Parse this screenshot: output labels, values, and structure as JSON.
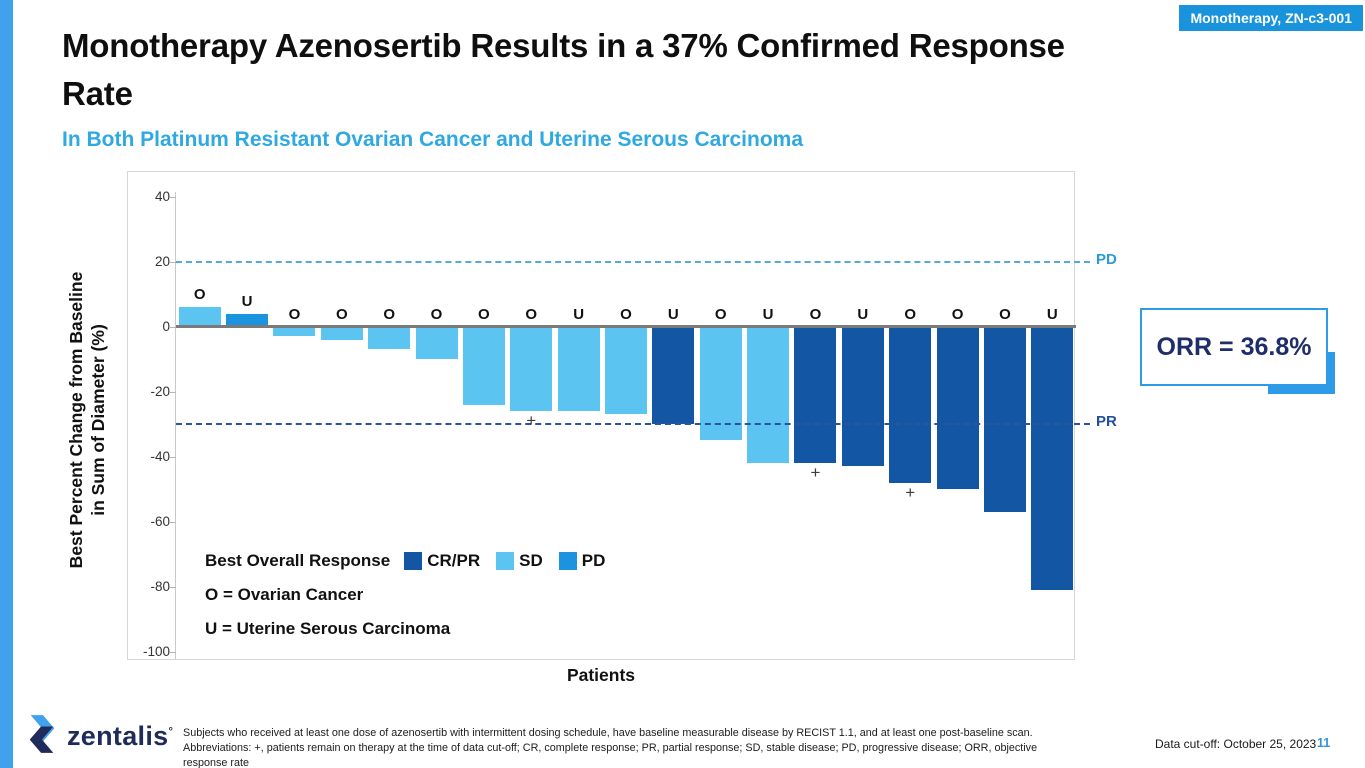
{
  "badge": {
    "label": "Monotherapy, ZN-c3-001"
  },
  "title": "Monotherapy Azenosertib Results in a 37% Confirmed Response Rate",
  "subtitle": "In Both Platinum Resistant Ovarian Cancer and Uterine Serous Carcinoma",
  "orr_box": {
    "text": "ORR = 36.8%"
  },
  "chart_data": {
    "type": "bar",
    "xlabel": "Patients",
    "ylabel": "Best Percent Change from Baseline in Sum of Diameter (%)",
    "ylabel_line1": "Best Percent Change from Baseline",
    "ylabel_line2": "in Sum of Diameter (%)",
    "ylim": [
      -100,
      40
    ],
    "yticks": [
      40,
      20,
      0,
      -20,
      -40,
      -60,
      -80,
      -100
    ],
    "grid": false,
    "reference_lines": [
      {
        "label": "PD",
        "value": 20,
        "line_color": "#54A9DC",
        "label_color": "#2B9AD8"
      },
      {
        "label": "PR",
        "value": -30,
        "line_color": "#2B549B",
        "label_color": "#1F4F9E"
      }
    ],
    "colors": {
      "CR/PR": "#1256A4",
      "SD": "#5BC4F1",
      "PD": "#1B93DF"
    },
    "legend": {
      "title": "Best Overall Response",
      "position": "lower left",
      "entries": [
        {
          "label": "CR/PR",
          "color": "#1256A4"
        },
        {
          "label": "SD",
          "color": "#5BC4F1"
        },
        {
          "label": "PD",
          "color": "#1B93DF"
        }
      ]
    },
    "key": [
      {
        "text": "O = Ovarian Cancer"
      },
      {
        "text": "U = Uterine Serous Carcinoma"
      }
    ],
    "patients": [
      {
        "label": "O",
        "value": 6,
        "response": "SD",
        "on_therapy": false
      },
      {
        "label": "U",
        "value": 4,
        "response": "PD",
        "on_therapy": false
      },
      {
        "label": "O",
        "value": -3,
        "response": "SD",
        "on_therapy": false
      },
      {
        "label": "O",
        "value": -4,
        "response": "SD",
        "on_therapy": false
      },
      {
        "label": "O",
        "value": -7,
        "response": "SD",
        "on_therapy": false
      },
      {
        "label": "O",
        "value": -10,
        "response": "SD",
        "on_therapy": false
      },
      {
        "label": "O",
        "value": -24,
        "response": "SD",
        "on_therapy": false
      },
      {
        "label": "O",
        "value": -26,
        "response": "SD",
        "on_therapy": true
      },
      {
        "label": "U",
        "value": -26,
        "response": "SD",
        "on_therapy": false
      },
      {
        "label": "O",
        "value": -27,
        "response": "SD",
        "on_therapy": false
      },
      {
        "label": "U",
        "value": -30,
        "response": "CR/PR",
        "on_therapy": false
      },
      {
        "label": "O",
        "value": -35,
        "response": "SD",
        "on_therapy": false
      },
      {
        "label": "U",
        "value": -42,
        "response": "SD",
        "on_therapy": false
      },
      {
        "label": "O",
        "value": -42,
        "response": "CR/PR",
        "on_therapy": true
      },
      {
        "label": "U",
        "value": -43,
        "response": "CR/PR",
        "on_therapy": false
      },
      {
        "label": "O",
        "value": -48,
        "response": "CR/PR",
        "on_therapy": true
      },
      {
        "label": "O",
        "value": -50,
        "response": "CR/PR",
        "on_therapy": false
      },
      {
        "label": "O",
        "value": -57,
        "response": "CR/PR",
        "on_therapy": false
      },
      {
        "label": "U",
        "value": -81,
        "response": "CR/PR",
        "on_therapy": false
      }
    ]
  },
  "footer": {
    "logo_text": "zentalis",
    "footnote_line1": "Subjects who received at least one dose of azenosertib with intermittent dosing schedule, have baseline measurable disease by RECIST 1.1, and at least one post-baseline scan.",
    "footnote_line2": "Abbreviations: +, patients remain on therapy at the time of data cut-off; CR, complete response; PR, partial response; SD, stable disease; PD, progressive disease; ORR, objective response rate",
    "data_cutoff": "Data cut-off: October 25, 2023",
    "page_number": "11"
  }
}
